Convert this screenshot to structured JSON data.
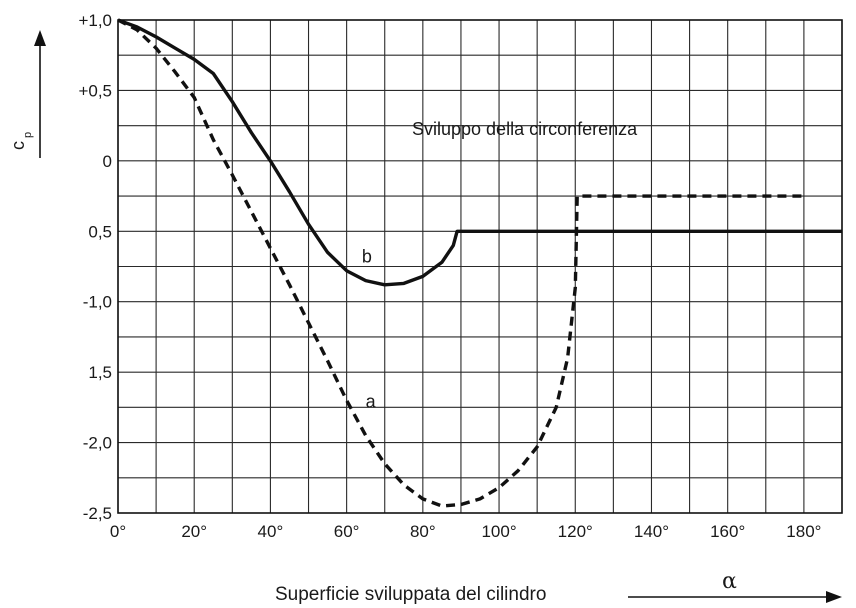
{
  "chart_data": {
    "type": "line",
    "title": "",
    "xlabel": "Superficie sviluppata del cilindro",
    "xsymbol": "α",
    "ylabel": "c",
    "ylabel_sub": "p",
    "annotation": "Sviluppo della circonferenza",
    "xlim": [
      0,
      190
    ],
    "ylim": [
      -2.5,
      1.0
    ],
    "grid": true,
    "x_tick_labels": [
      {
        "x": 0,
        "label": "0°"
      },
      {
        "x": 20,
        "label": "20°"
      },
      {
        "x": 40,
        "label": "40°"
      },
      {
        "x": 60,
        "label": "60°"
      },
      {
        "x": 80,
        "label": "80°"
      },
      {
        "x": 100,
        "label": "100°"
      },
      {
        "x": 120,
        "label": "120°"
      },
      {
        "x": 140,
        "label": "140°"
      },
      {
        "x": 160,
        "label": "160°"
      },
      {
        "x": 180,
        "label": "180°"
      }
    ],
    "y_tick_labels": [
      {
        "y": 1.0,
        "label": "+1,0"
      },
      {
        "y": 0.5,
        "label": "+0,5"
      },
      {
        "y": 0.0,
        "label": "0"
      },
      {
        "y": -0.5,
        "label": "0,5"
      },
      {
        "y": -1.0,
        "label": "-1,0"
      },
      {
        "y": -1.5,
        "label": "1,5"
      },
      {
        "y": -2.0,
        "label": "-2,0"
      },
      {
        "y": -2.5,
        "label": "-2,5"
      }
    ],
    "series": [
      {
        "name": "a",
        "style": "dashed",
        "label_at": [
          65,
          -1.75
        ],
        "points": [
          [
            0,
            1.0
          ],
          [
            5,
            0.93
          ],
          [
            10,
            0.8
          ],
          [
            15,
            0.63
          ],
          [
            20,
            0.45
          ],
          [
            25,
            0.15
          ],
          [
            30,
            -0.1
          ],
          [
            35,
            -0.36
          ],
          [
            40,
            -0.62
          ],
          [
            45,
            -0.88
          ],
          [
            50,
            -1.15
          ],
          [
            55,
            -1.42
          ],
          [
            60,
            -1.7
          ],
          [
            65,
            -1.95
          ],
          [
            70,
            -2.15
          ],
          [
            75,
            -2.3
          ],
          [
            80,
            -2.4
          ],
          [
            85,
            -2.45
          ],
          [
            90,
            -2.44
          ],
          [
            95,
            -2.4
          ],
          [
            100,
            -2.32
          ],
          [
            105,
            -2.2
          ],
          [
            110,
            -2.03
          ],
          [
            115,
            -1.75
          ],
          [
            118,
            -1.4
          ],
          [
            120,
            -0.9
          ],
          [
            120.5,
            -0.25
          ],
          [
            180,
            -0.25
          ]
        ]
      },
      {
        "name": "b",
        "style": "solid",
        "label_at": [
          64,
          -0.72
        ],
        "points": [
          [
            0,
            1.0
          ],
          [
            5,
            0.95
          ],
          [
            10,
            0.88
          ],
          [
            15,
            0.8
          ],
          [
            20,
            0.72
          ],
          [
            25,
            0.62
          ],
          [
            30,
            0.42
          ],
          [
            35,
            0.2
          ],
          [
            40,
            0.0
          ],
          [
            45,
            -0.22
          ],
          [
            50,
            -0.45
          ],
          [
            55,
            -0.65
          ],
          [
            60,
            -0.78
          ],
          [
            65,
            -0.85
          ],
          [
            70,
            -0.88
          ],
          [
            75,
            -0.87
          ],
          [
            80,
            -0.82
          ],
          [
            85,
            -0.72
          ],
          [
            88,
            -0.6
          ],
          [
            89,
            -0.5
          ],
          [
            190,
            -0.5
          ]
        ]
      }
    ],
    "colors": {
      "line": "#111111",
      "grid": "#2a2a2a",
      "axis": "#111111"
    }
  }
}
